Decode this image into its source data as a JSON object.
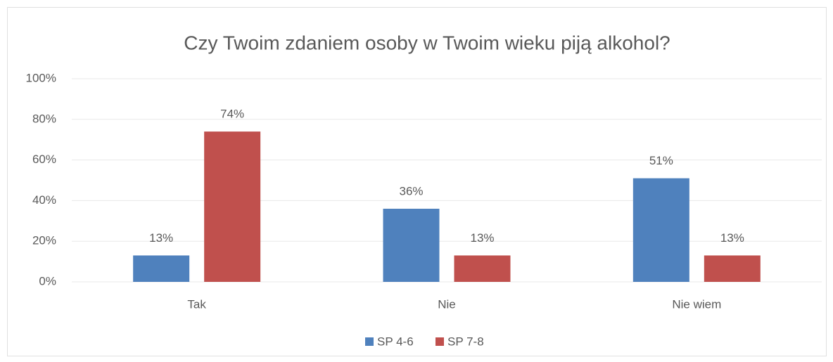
{
  "chart_data": {
    "type": "bar",
    "title": "Czy Twoim zdaniem osoby w Twoim wieku piją alkohol?",
    "categories": [
      "Tak",
      "Nie",
      "Nie wiem"
    ],
    "series": [
      {
        "name": "SP 4-6",
        "color": "#4f81bd",
        "values": [
          13,
          36,
          51
        ],
        "value_labels": [
          "13%",
          "36%",
          "51%"
        ]
      },
      {
        "name": "SP 7-8",
        "color": "#c0504d",
        "values": [
          74,
          13,
          13
        ],
        "value_labels": [
          "74%",
          "13%",
          "13%"
        ]
      }
    ],
    "ylim": [
      0,
      100
    ],
    "yticks": [
      {
        "value": 0,
        "label": "0%"
      },
      {
        "value": 20,
        "label": "20%"
      },
      {
        "value": 40,
        "label": "40%"
      },
      {
        "value": 60,
        "label": "60%"
      },
      {
        "value": 80,
        "label": "80%"
      },
      {
        "value": 100,
        "label": "100%"
      }
    ],
    "grid": true,
    "legend": "bottom"
  }
}
